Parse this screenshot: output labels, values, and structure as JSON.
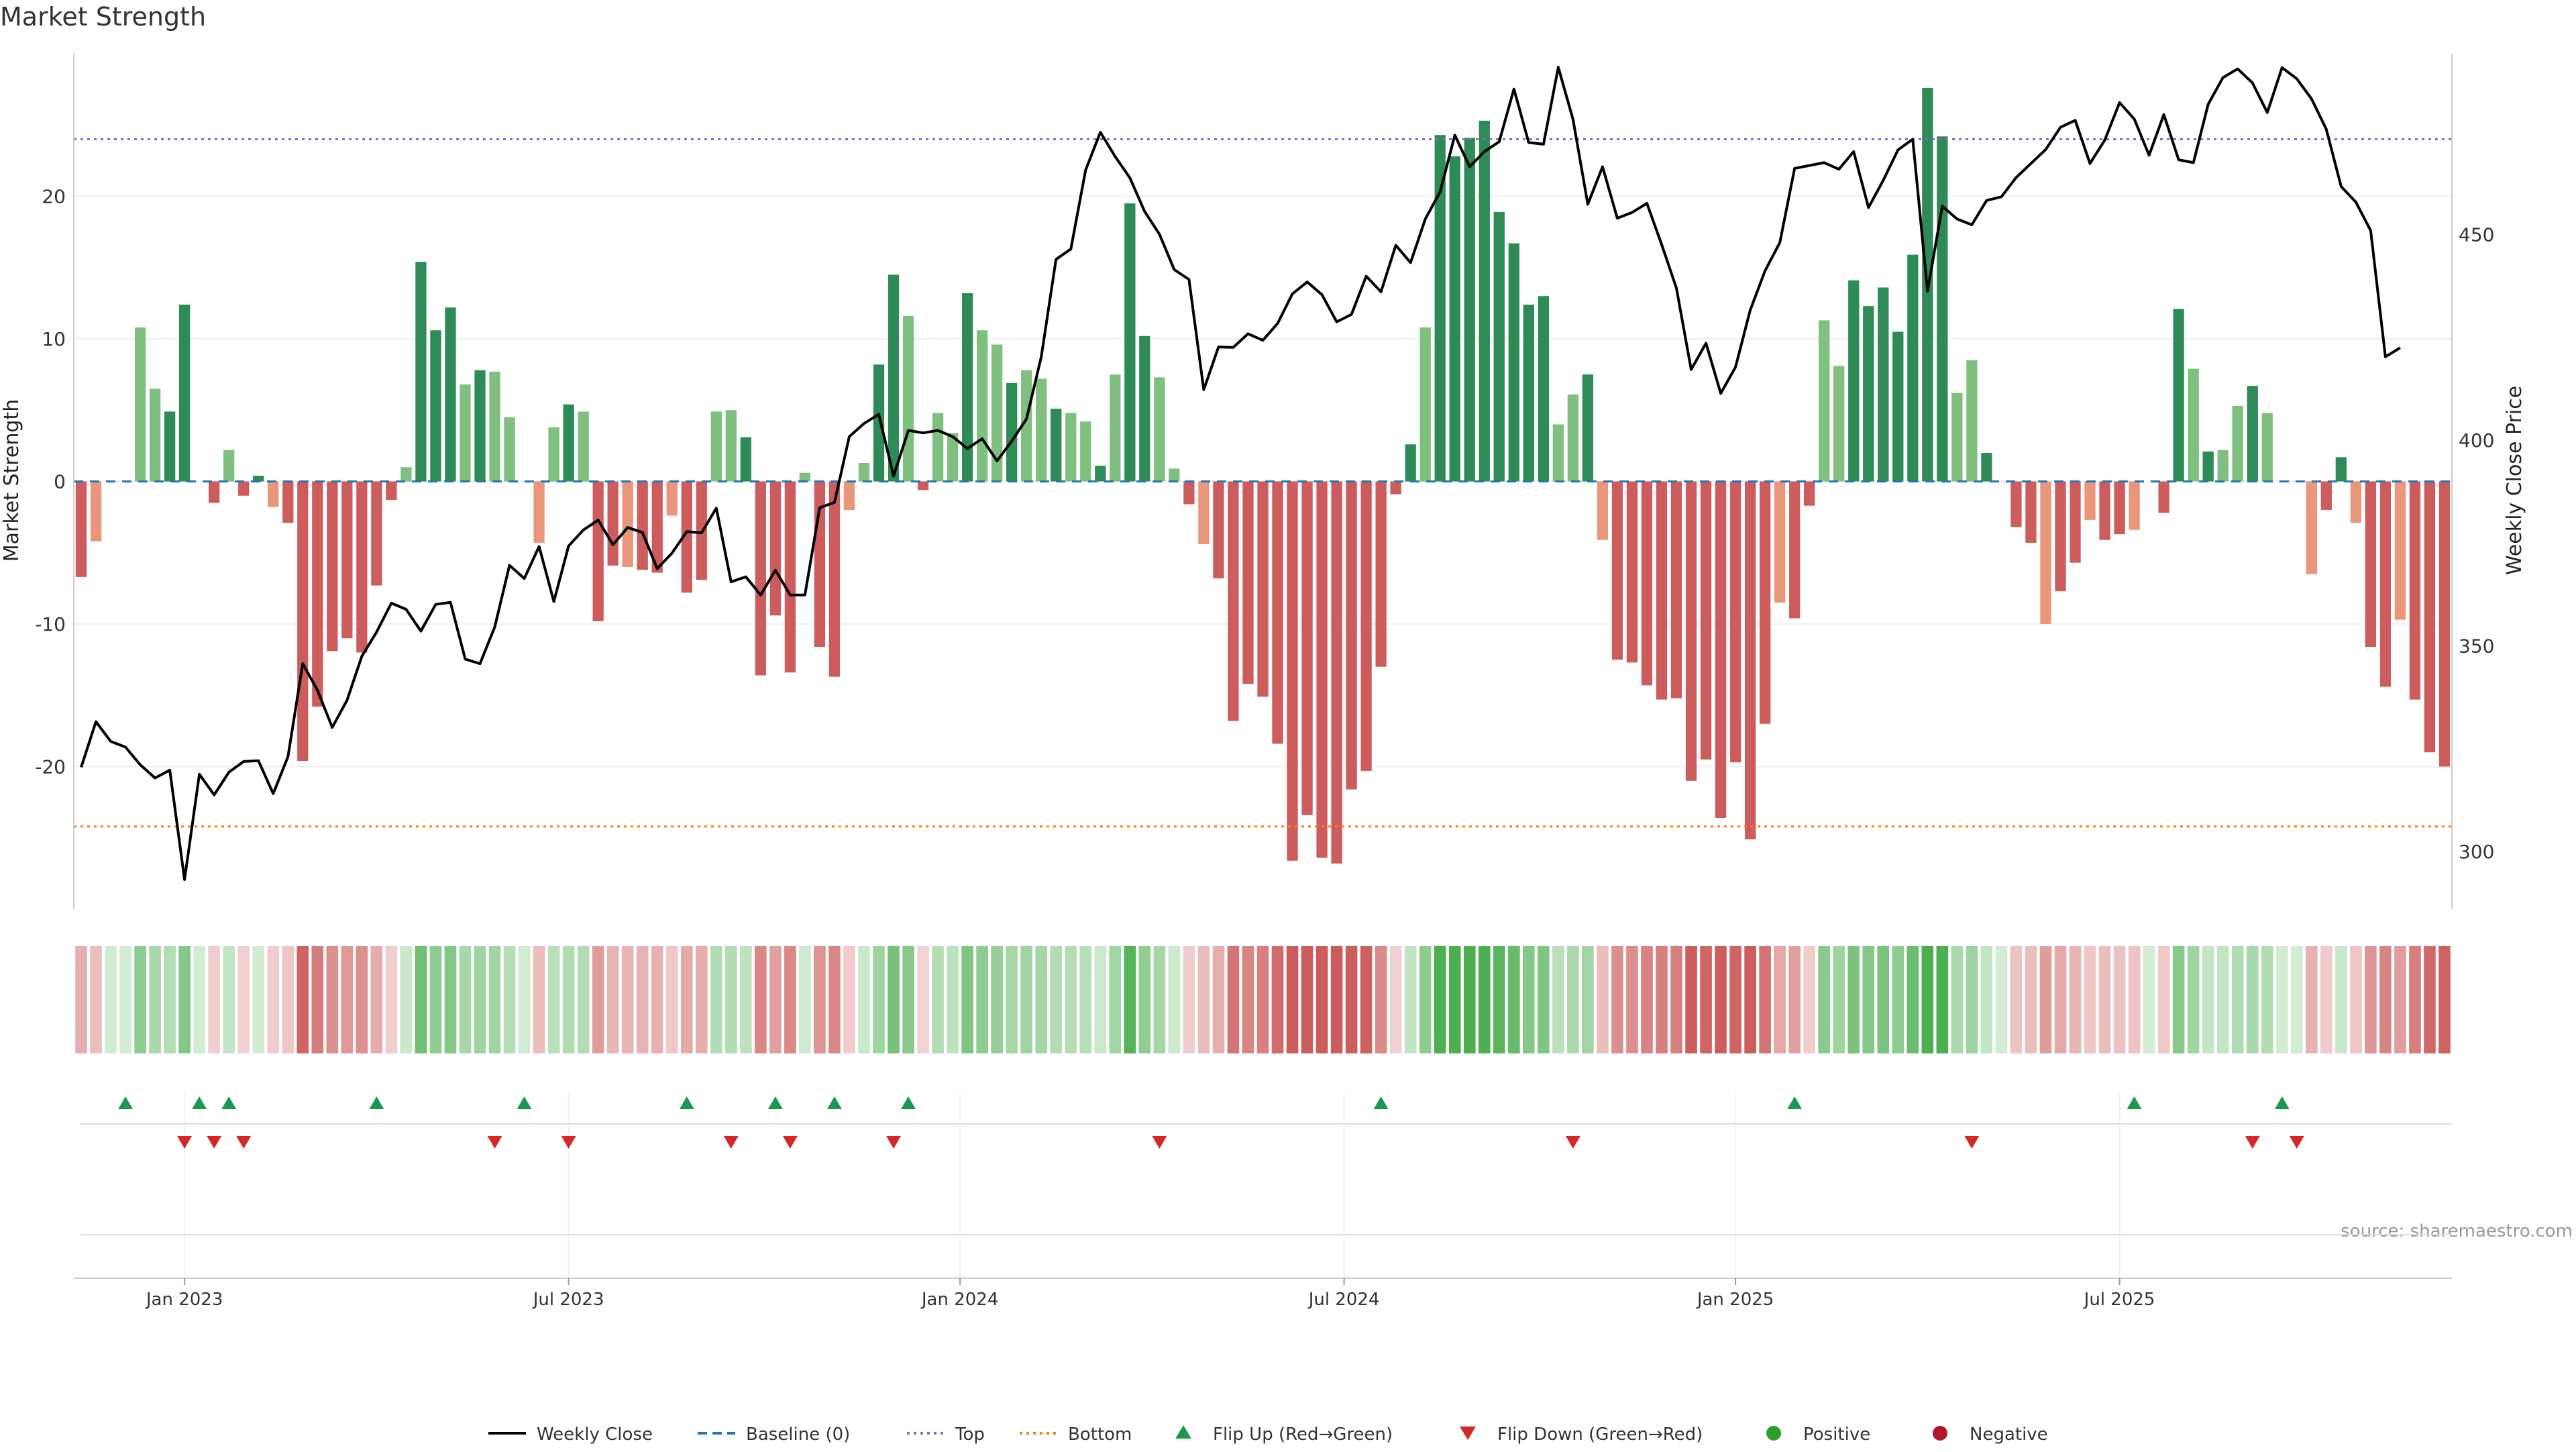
{
  "chart_data": {
    "type": "bar",
    "title": "Market Strength",
    "ylabel": "Market Strength",
    "y2label": "Weekly Close Price",
    "ylim": [
      -30,
      30
    ],
    "y2lim": [
      286,
      494
    ],
    "yticks": [
      -20,
      -10,
      0,
      10,
      20
    ],
    "y2ticks": [
      300,
      350,
      400,
      450
    ],
    "top_line": 24,
    "bottom_line": -24.2,
    "x_ticks": [
      {
        "label": "Jan 2023",
        "week": 7.5
      },
      {
        "label": "Jul 2023",
        "week": 33.5
      },
      {
        "label": "Jan 2024",
        "week": 60
      },
      {
        "label": "Jul 2024",
        "week": 86
      },
      {
        "label": "Jan 2025",
        "week": 112.5
      },
      {
        "label": "Jul 2025",
        "week": 138.5
      }
    ],
    "grid": true,
    "source": "source: sharemaestro.com",
    "colors": {
      "strong_pos": "#2e8b57",
      "light_pos": "#7fbf7f",
      "strong_neg": "#cd5c5c",
      "light_neg": "#e9967a",
      "close_line": "#000000",
      "baseline": "#1f77b4",
      "top": "#9467bd",
      "bottom": "#ff7f0e",
      "flip_up": "#1a9850",
      "flip_down": "#d62728",
      "positive": "#2ca02c",
      "negative": "#b2182b"
    },
    "strength": [
      -6.7,
      -4.2,
      0,
      0,
      10.8,
      6.5,
      4.9,
      12.4,
      0,
      -1.5,
      2.2,
      -1.0,
      0.4,
      -1.8,
      -2.9,
      -19.6,
      -15.8,
      -11.9,
      -11.0,
      -12.0,
      -7.3,
      -1.3,
      1.0,
      15.4,
      10.6,
      12.2,
      6.8,
      7.8,
      7.7,
      4.5,
      0,
      -4.3,
      3.8,
      5.4,
      4.9,
      -9.8,
      -5.9,
      -6.0,
      -6.2,
      -6.4,
      -2.4,
      -7.8,
      -6.9,
      4.9,
      5.0,
      3.1,
      -13.6,
      -9.4,
      -13.4,
      0.6,
      -11.6,
      -13.7,
      -2.0,
      1.3,
      8.2,
      14.5,
      11.6,
      -0.6,
      4.8,
      3.4,
      13.2,
      10.6,
      9.6,
      6.9,
      7.8,
      7.2,
      5.1,
      4.8,
      4.2,
      1.1,
      7.5,
      19.5,
      10.2,
      7.3,
      0.9,
      -1.6,
      -4.4,
      -6.8,
      -16.8,
      -14.2,
      -15.1,
      -18.4,
      -26.6,
      -23.4,
      -26.4,
      -26.8,
      -21.6,
      -20.3,
      -13.0,
      -0.9,
      2.6,
      10.8,
      24.3,
      22.8,
      24.1,
      25.3,
      18.9,
      16.7,
      12.4,
      13.0,
      4.0,
      6.1,
      7.5,
      -4.1,
      -12.5,
      -12.7,
      -14.3,
      -15.3,
      -15.2,
      -21.0,
      -19.5,
      -23.6,
      -19.7,
      -25.1,
      -17.0,
      -8.5,
      -9.6,
      -1.7,
      11.3,
      8.1,
      14.1,
      12.3,
      13.6,
      10.5,
      15.9,
      27.6,
      24.2,
      6.2,
      8.5,
      2.0,
      0,
      -3.2,
      -4.3,
      -10.0,
      -7.7,
      -5.7,
      -2.7,
      -4.1,
      -3.7,
      -3.4,
      0,
      -2.2,
      12.1,
      7.9,
      2.1,
      2.2,
      5.3,
      6.7,
      4.8,
      0,
      0,
      -6.5,
      -2.0,
      1.7,
      -2.9,
      -11.6,
      -14.4,
      -9.7,
      -15.3,
      -19.0,
      -20.0
    ],
    "close": [
      320.5,
      331.6,
      326.8,
      325.4,
      321.1,
      317.9,
      319.8,
      293.2,
      318.8,
      313.8,
      319.3,
      321.9,
      322.1,
      314.1,
      323.1,
      345.7,
      339.2,
      330.2,
      336.8,
      347.5,
      353.4,
      360.4,
      358.9,
      353.6,
      360.1,
      360.6,
      346.8,
      345.7,
      354.6,
      369.6,
      366.4,
      374.2,
      360.8,
      374.3,
      378.2,
      380.6,
      374.6,
      378.8,
      377.6,
      368.8,
      372.6,
      377.8,
      377.5,
      383.5,
      365.6,
      366.8,
      362.4,
      368.4,
      362.4,
      362.4,
      383.6,
      384.9,
      400.9,
      404.1,
      406.3,
      391.3,
      402.4,
      401.8,
      402.4,
      400.9,
      398.0,
      400.4,
      395.0,
      399.8,
      405.2,
      420.3,
      444.0,
      446.5,
      465.7,
      474.9,
      469.0,
      463.8,
      455.6,
      450.1,
      441.5,
      439.1,
      412.3,
      422.7,
      422.6,
      425.9,
      424.3,
      428.4,
      435.6,
      438.5,
      435.4,
      428.8,
      430.6,
      439.9,
      436.1,
      447.4,
      443.2,
      453.8,
      460.4,
      474.2,
      466.5,
      470.2,
      472.6,
      485.4,
      472.4,
      472.0,
      490.7,
      478.0,
      457.4,
      466.5,
      454.0,
      455.4,
      457.6,
      447.6,
      437.0,
      417.2,
      423.6,
      411.4,
      417.8,
      431.7,
      441.2,
      448.1,
      466.1,
      466.8,
      467.5,
      465.9,
      470.2,
      456.6,
      463.2,
      470.6,
      473.2,
      436.3,
      456.9,
      453.8,
      452.4,
      458.3,
      459.2,
      463.9,
      467.3,
      470.7,
      476.1,
      477.8,
      467.3,
      473.0,
      482.1,
      478.1,
      469.3,
      479.2,
      468.2,
      467.5,
      481.7,
      488.2,
      490.3,
      486.9,
      479.7,
      490.6,
      487.9,
      483.0,
      475.6,
      461.7,
      457.9,
      451.0,
      420.3,
      422.5
    ],
    "flip_up_weeks": [
      3,
      8,
      10,
      20,
      30,
      41,
      47,
      51,
      56,
      88,
      116,
      139,
      149
    ],
    "flip_down_weeks": [
      7,
      9,
      11,
      28,
      33,
      44,
      48,
      55,
      73,
      101,
      128,
      147,
      150
    ],
    "legend": [
      {
        "label": "Weekly Close",
        "kind": "line-solid",
        "color": "#000000"
      },
      {
        "label": "Baseline (0)",
        "kind": "line-dash",
        "color": "#1f77b4"
      },
      {
        "label": "Top",
        "kind": "line-dot",
        "color": "#9467bd"
      },
      {
        "label": "Bottom",
        "kind": "line-dot",
        "color": "#ff7f0e"
      },
      {
        "label": "Flip Up (Red→Green)",
        "kind": "triangle-up",
        "color": "#1a9850"
      },
      {
        "label": "Flip Down (Green→Red)",
        "kind": "triangle-down",
        "color": "#d62728"
      },
      {
        "label": "Positive",
        "kind": "dot",
        "color": "#2ca02c"
      },
      {
        "label": "Negative",
        "kind": "dot",
        "color": "#b2182b"
      }
    ]
  }
}
